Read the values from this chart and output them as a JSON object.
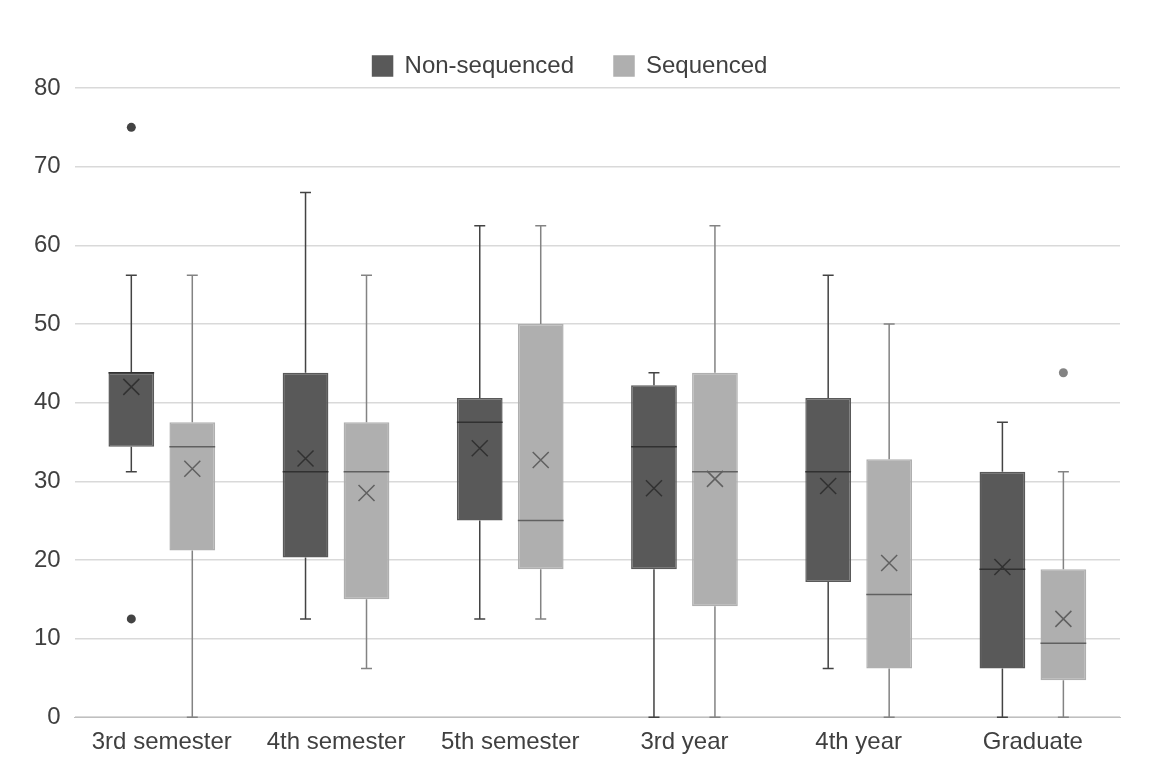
{
  "chart_data": {
    "type": "box",
    "categories": [
      "3rd semester",
      "4th semester",
      "5th semester",
      "3rd year",
      "4th year",
      "Graduate"
    ],
    "series": [
      {
        "name": "Non-sequenced",
        "color": "#595959",
        "boxes": [
          {
            "low": 31.2,
            "q1": 34.4,
            "median": 43.8,
            "q3": 43.8,
            "high": 56.2,
            "mean": 42,
            "outliers": [
              75,
              12.5
            ]
          },
          {
            "low": 12.5,
            "q1": 20.3,
            "median": 31.2,
            "q3": 43.8,
            "high": 66.7,
            "mean": 32.9
          },
          {
            "low": 12.5,
            "q1": 25,
            "median": 37.5,
            "q3": 40.6,
            "high": 62.5,
            "mean": 34.2
          },
          {
            "low": 0,
            "q1": 18.8,
            "median": 34.4,
            "q3": 42.2,
            "high": 43.8,
            "mean": 29.1
          },
          {
            "low": 6.2,
            "q1": 17.2,
            "median": 31.2,
            "q3": 40.6,
            "high": 56.2,
            "mean": 29.4
          },
          {
            "low": 0,
            "q1": 6.2,
            "median": 18.8,
            "q3": 31.2,
            "high": 37.5,
            "mean": 19.1
          }
        ]
      },
      {
        "name": "Sequenced",
        "color": "#afafaf",
        "boxes": [
          {
            "low": 0,
            "q1": 21.2,
            "median": 34.4,
            "q3": 37.5,
            "high": 56.2,
            "mean": 31.6
          },
          {
            "low": 6.2,
            "q1": 15,
            "median": 31.2,
            "q3": 37.5,
            "high": 56.2,
            "mean": 28.5
          },
          {
            "low": 12.5,
            "q1": 18.8,
            "median": 25,
            "q3": 50,
            "high": 62.5,
            "mean": 32.7
          },
          {
            "low": 0,
            "q1": 14.1,
            "median": 31.2,
            "q3": 43.8,
            "high": 62.5,
            "mean": 30.3
          },
          {
            "low": 0,
            "q1": 6.2,
            "median": 15.6,
            "q3": 32.8,
            "high": 50,
            "mean": 19.6
          },
          {
            "low": 0,
            "q1": 4.7,
            "median": 9.4,
            "q3": 18.8,
            "high": 31.2,
            "mean": 12.5,
            "outliers": [
              43.8
            ]
          }
        ]
      }
    ],
    "ylim": [
      0,
      80
    ],
    "yticks": [
      0,
      10,
      20,
      30,
      40,
      50,
      60,
      70,
      80
    ],
    "grid": "y",
    "legend": "top"
  }
}
